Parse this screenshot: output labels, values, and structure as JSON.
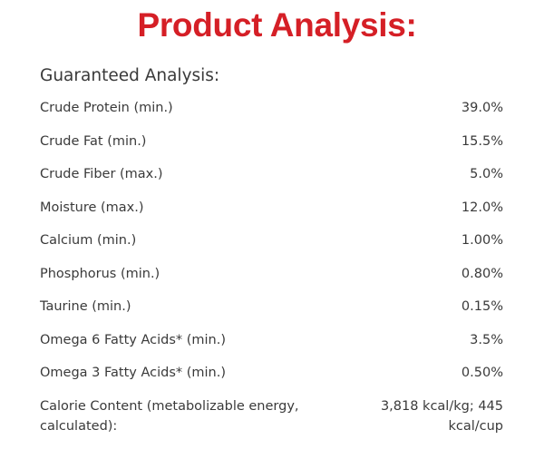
{
  "title": "Product Analysis:",
  "section_heading": "Guaranteed Analysis:",
  "rows": [
    {
      "label": "Crude Protein (min.)",
      "value": "39.0%"
    },
    {
      "label": "Crude Fat (min.)",
      "value": "15.5%"
    },
    {
      "label": "Crude Fiber (max.)",
      "value": "5.0%"
    },
    {
      "label": "Moisture (max.)",
      "value": "12.0%"
    },
    {
      "label": "Calcium (min.)",
      "value": "1.00%"
    },
    {
      "label": "Phosphorus (min.)",
      "value": "0.80%"
    },
    {
      "label": "Taurine (min.)",
      "value": "0.15%"
    },
    {
      "label": "Omega 6 Fatty Acids* (min.)",
      "value": "3.5%"
    },
    {
      "label": "Omega 3 Fatty Acids* (min.)",
      "value": "0.50%"
    },
    {
      "label": "Calorie Content (metabolizable energy, calculated):",
      "value": "3,818 kcal/kg; 445 kcal/cup"
    }
  ],
  "colors": {
    "title": "#d51f26",
    "text": "#3a3a3a",
    "background": "#ffffff"
  }
}
